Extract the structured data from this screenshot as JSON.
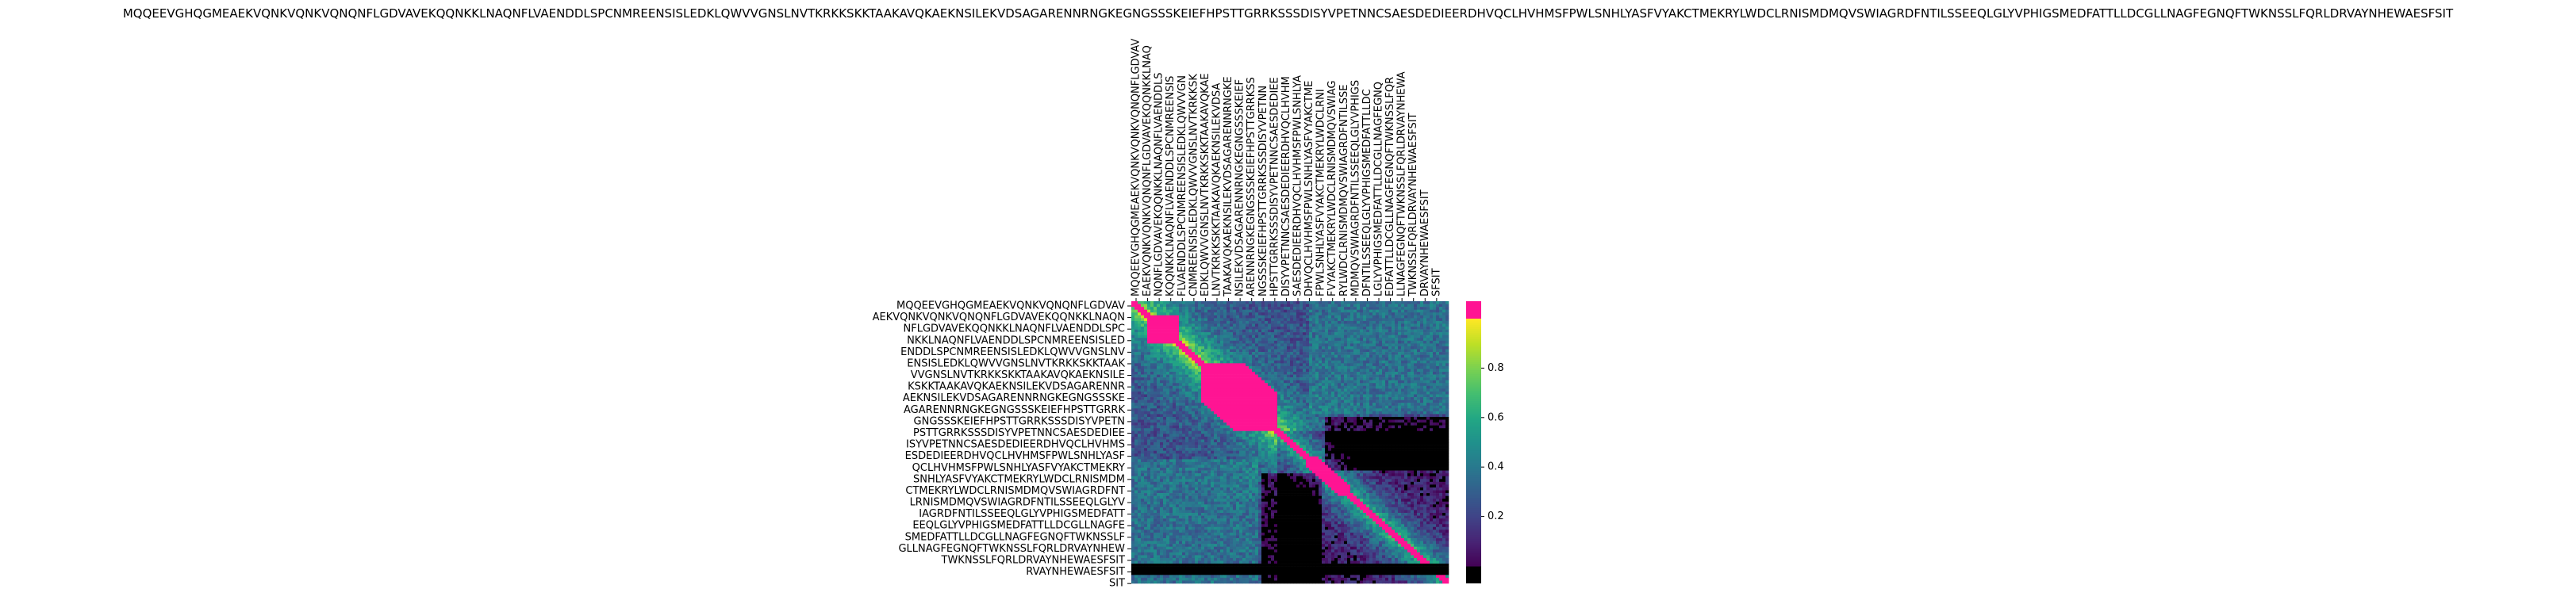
{
  "title": "MQQEEVGHQGMEAEKVQNKVQNKVQNQNFLGDVAVEKQQNKKLNAQNFLVAENDDLSPCNMREENSISLEDKLQWVVGNSLNVTKRKKSKKTAAKAVQKAEKNSILEKVDSAGARENNRNGKEGNGSSSKEIEFHPSTTGRRKSSSDISYVPETNNCSAESDEDIEERDHVQCLHVHMSFPWLSNHLYASFVYAKCTMEKRYLWDCLRNISMDMQVSWIAGRDFNTILSSEEQLGLYVPHIGSMEDFATTLLDCGLLNAGFEGNQFTWKNSSLFQRLDRVAYNHEWAESFSIT",
  "chart_data": {
    "type": "heatmap",
    "title": "MQQEEVGHQGMEAEKVQNKVQNKVQNQNFLGDVAVEKQQNKKLNAQNFLVAENDDLSPCNMREENSISLEDKLQWVVGNSLNVTKRKKSKKTAAKAVQKAEKNSILEKVDSAGARENNRNGKEGNGSSSKEIEFHPSTTGRRKSSSDISYVPETNNCSAESDEDIEERDHVQCLHVHMSFPWLSNHLYASFVYAKCTMEKRYLWDCLRNISMDMQVSWIAGRDFNTILSSEEQLGLYVPHIGSMEDFATTLLDCGLLNAGFEGNQFTWKNSSLFQRLDRVAYNHEWAESFSIT",
    "xlabel": "",
    "ylabel": "",
    "n_cells": 100,
    "y_tick_labels": [
      "MQQEEVGHQGMEAEKVQNKVQNQNFLGDVAV",
      "AEKVQNKVQNKVQNQNFLGDVAVEKQQNKKLNAQN",
      "NFLGDVAVEKQQNKKLNAQNFLVAENDDLSPC",
      "NKKLNAQNFLVAENDDLSPCNMREENSISLED",
      "ENDDLSPCNMREENSISLEDKLQWVVGNSLNV",
      "ENSISLEDKLQWVVGNSLNVTKRKKSKKTAAK",
      "VVGNSLNVTKRKKSKKTAAKAVQKAEKNSILE",
      "KSKKTAAKAVQKAEKNSILEKVDSAGARENNR",
      "AEKNSILEKVDSAGARENNRNGKEGNGSSSKE",
      "AGARENNRNGKEGNGSSSKEIEFHPSTTGRRK",
      "GNGSSSKEIEFHPSTTGRRKSSSDISYVPETN",
      "PSTTGRRKSSSDISYVPETNNCSAESDEDIEE",
      "ISYVPETNNCSAESDEDIEERDHVQCLHVHMS",
      "ESDEDIEERDHVQCLHVHMSFPWLSNHLYASF",
      "QCLHVHMSFPWLSNHLYASFVYAKCTMEKRY",
      "SNHLYASFVYAKCTMEKRYLWDCLRNISMDM",
      "CTMEKRYLWDCLRNISMDMQVSWIAGRDFNT",
      "LRNISMDMQVSWIAGRDFNTILSSEEQLGLYV",
      "IAGRDFNTILSSEEQLGLYVPHIGSMEDFATT",
      "EEQLGLYVPHIGSMEDFATTLLDCGLLNAGFE",
      "SMEDFATTLLDCGLLNAGFEGNQFTWKNSSLF",
      "GLLNAGFEGNQFTWKNSSLFQRLDRVAYNHEW",
      "TWKNSSLFQRLDRVAYNHEWAESFSIT",
      "RVAYNHEWAESFSIT",
      "SIT"
    ],
    "x_tick_labels": [
      "MQQEEVGHQGMEAEKVQNKVQNKVQNQNFLGDVAV",
      "EAEKVQNKVQNKVQNQNFLGDVAVEKQQNKKLNAQ",
      "NQNFLGDVAVEKQQNKKLNAQNFLVAENDDLS",
      "KQQNKKLNAQNFLVAENDDLSPCNMREENSIS",
      "FLVAENDDLSPCNMREENSISLEDKLQWVVGN",
      "CNMREENSISLEDKLQWVVGNSLNVTKRKKSK",
      "EDKLQWVVGNSLNVTKRKKSKKTAAKAVQKAE",
      "LNVTKRKKSKKTAAKAVQKAEKNSILEKVDSA",
      "TAAKAVQKAEKNSILEKVDSAGARENNRNGKE",
      "NSILEKVDSAGARENNRNGKEGNGSSSKEIEF",
      "ARENNRNGKEGNGSSSKEIEFHPSTTGRRKSS",
      "NGSSSKEIEFHPSTTGRRKSSSDISYVPETNN",
      "HPSTTGRRKSSSDISYVPETNNCSAESDEDIEE",
      "DISYVPETNNCSAESDEDIEERDHVQCLHVHM",
      "SAESDEDIEERDHVQCLHVHMSFPWLSNHLYA",
      "DHVQCLHVHMSFPWLSNHLYASFVYAKCTME",
      "FPWLSNHLYASFVYAKCTMEKRYLWDCLRNI",
      "FVYAKCTMEKRYLWDCLRNISMDMQVSWIAG",
      "RYLWDCLRNISMDMQVSWIAGRDFNTILSSE",
      "MDMQVSWIAGRDFNTILSSEEQLGLYVPHIGS",
      "DFNTILSSEEQLGLYVPHIGSMEDFATTLLDC",
      "LGLYVPHIGSMEDFATTLLDCGLLNAGFEGNQ",
      "EDFATTLLDCGLLNAGFEGNQFTWKNSSLFQR",
      "LLNAGFEGNQFTWKNSSLFQRLDRVAYNHEWA",
      "TWKNSSLFQRLDRVAYNHEWAESFSIT",
      "DRVAYNHEWAESFSIT",
      "SFSIT"
    ],
    "colorbar": {
      "range": [
        0,
        1
      ],
      "ticks": [
        0.2,
        0.4,
        0.6,
        0.8
      ],
      "colormap": "viridis",
      "over_color": "#ff1493",
      "under_color": "#000000"
    },
    "legend": "right"
  }
}
